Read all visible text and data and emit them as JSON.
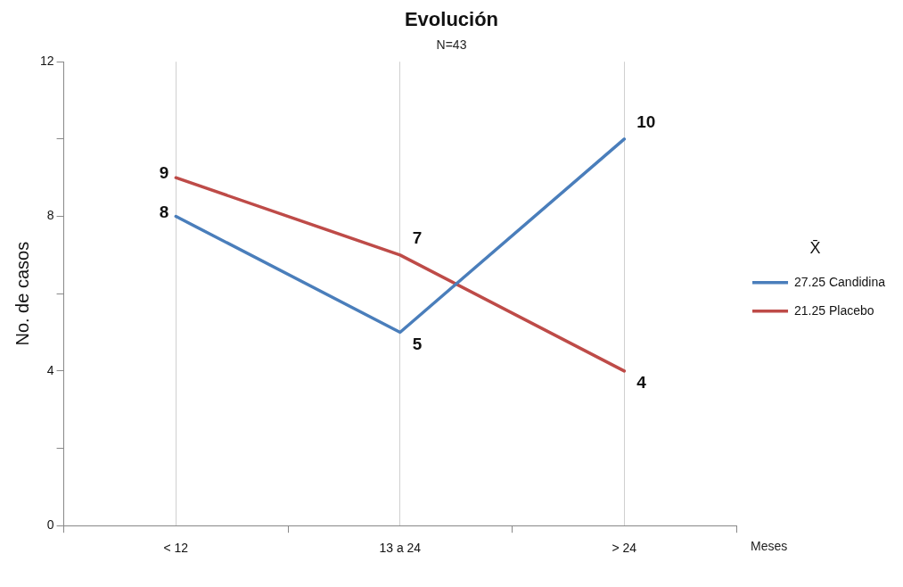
{
  "chart_data": {
    "type": "line",
    "title": "Evolución",
    "subtitle": "N=43",
    "ylabel": "No. de casos",
    "xlabel": "Meses",
    "legend_title": "X̄",
    "categories": [
      "< 12",
      "13 a 24",
      "> 24"
    ],
    "series": [
      {
        "name": "27.25 Candidina",
        "color": "#4a7ebb",
        "values": [
          8,
          5,
          10
        ]
      },
      {
        "name": "21.25 Placebo",
        "color": "#be4b48",
        "values": [
          9,
          7,
          4
        ]
      }
    ],
    "ylim": [
      0,
      12
    ],
    "yticks": [
      0,
      {
        "value": 2,
        "label": null
      },
      4,
      {
        "value": 6,
        "label": null
      },
      8,
      {
        "value": 10,
        "label": null
      },
      12
    ],
    "grid": "x",
    "legend": "right",
    "marker": "none",
    "line_style": "solid",
    "data_labels": true
  }
}
